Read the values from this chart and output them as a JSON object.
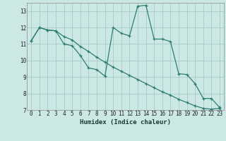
{
  "xlabel": "Humidex (Indice chaleur)",
  "background_color": "#cce8e4",
  "grid_color": "#aacfcb",
  "line_color": "#2e7d72",
  "ylim": [
    7,
    13.5
  ],
  "xlim": [
    -0.5,
    23.5
  ],
  "yticks": [
    7,
    8,
    9,
    10,
    11,
    12,
    13
  ],
  "xticks": [
    0,
    1,
    2,
    3,
    4,
    5,
    6,
    7,
    8,
    9,
    10,
    11,
    12,
    13,
    14,
    15,
    16,
    17,
    18,
    19,
    20,
    21,
    22,
    23
  ],
  "series1_x": [
    0,
    1,
    2,
    3,
    4,
    5,
    6,
    7,
    8,
    9,
    10,
    11,
    12,
    13,
    14,
    15,
    16,
    17,
    18,
    19,
    20,
    21,
    22,
    23
  ],
  "series1_y": [
    11.2,
    12.0,
    11.85,
    11.8,
    11.0,
    10.9,
    10.3,
    9.55,
    9.45,
    9.05,
    12.0,
    11.65,
    11.5,
    13.3,
    13.35,
    11.3,
    11.3,
    11.15,
    9.2,
    9.15,
    8.6,
    7.7,
    7.7,
    7.15
  ],
  "series2_x": [
    0,
    1,
    2,
    3,
    4,
    5,
    6,
    7,
    8,
    9,
    10,
    11,
    12,
    13,
    14,
    15,
    16,
    17,
    18,
    19,
    20,
    21,
    22,
    23
  ],
  "series2_y": [
    11.2,
    12.0,
    11.85,
    11.8,
    11.45,
    11.25,
    10.85,
    10.55,
    10.2,
    9.9,
    9.6,
    9.35,
    9.1,
    8.85,
    8.6,
    8.35,
    8.1,
    7.9,
    7.65,
    7.45,
    7.25,
    7.1,
    7.05,
    7.1
  ]
}
